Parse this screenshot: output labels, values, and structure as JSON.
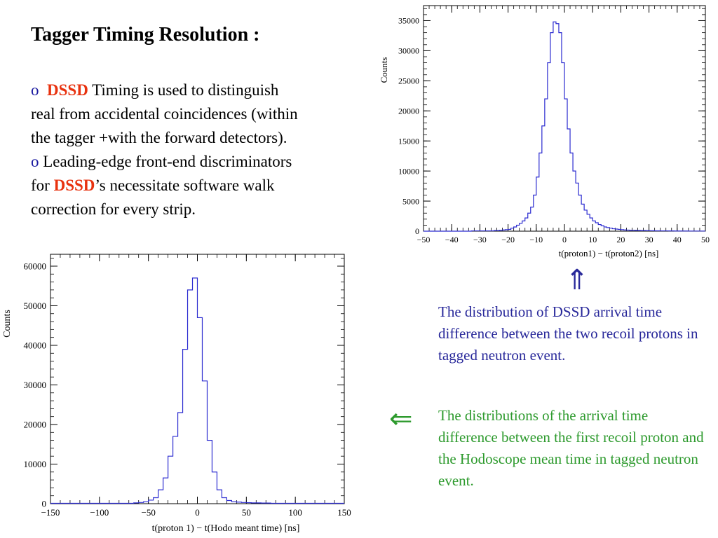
{
  "slide": {
    "title": "Tagger Timing Resolution :",
    "bullet1": {
      "marker": "o",
      "highlight": "DSSD",
      "text_line1": " Timing  is used to distinguish",
      "text_line2": "real from accidental coincidences (within",
      "text_line3": "the tagger  +with the forward detectors)."
    },
    "bullet2": {
      "marker": "o",
      "text_line1": " Leading-edge front-end discriminators",
      "for_word": "for ",
      "highlight": "DSSD",
      "text_after": "’s necessitate software walk",
      "text_line3": "correction for every strip."
    },
    "arrow_up": "⇑",
    "arrow_left": "⇐",
    "caption_dssd": "The distribution of DSSD arrival time difference between the two recoil protons in tagged neutron event.",
    "caption_hodo": "The distributions of the arrival time difference between the first recoil  proton and the Hodoscope mean time in tagged neutron event.",
    "colors": {
      "bullet_marker": "#1a1aa0",
      "highlight": "#e8320f",
      "histogram_line": "#2b2bd0",
      "caption_blue": "#28289a",
      "caption_green": "#2d9a2d"
    }
  },
  "chart_data": [
    {
      "type": "line",
      "style": "step-histogram",
      "xlabel": "t(proton1) − t(proton2) [ns]",
      "ylabel": "Counts",
      "xlim": [
        -50,
        50
      ],
      "ylim": [
        0,
        37500
      ],
      "xticks": [
        -50,
        -40,
        -30,
        -20,
        -10,
        0,
        10,
        20,
        30,
        40,
        50
      ],
      "yticks": [
        0,
        5000,
        10000,
        15000,
        20000,
        25000,
        30000,
        35000
      ],
      "bin_width": 1,
      "x": [
        -50,
        -49,
        -48,
        -47,
        -46,
        -45,
        -44,
        -43,
        -42,
        -41,
        -40,
        -39,
        -38,
        -37,
        -36,
        -35,
        -34,
        -33,
        -32,
        -31,
        -30,
        -29,
        -28,
        -27,
        -26,
        -25,
        -24,
        -23,
        -22,
        -21,
        -20,
        -19,
        -18,
        -17,
        -16,
        -15,
        -14,
        -13,
        -12,
        -11,
        -10,
        -9,
        -8,
        -7,
        -6,
        -5,
        -4,
        -3,
        -2,
        -1,
        0,
        1,
        2,
        3,
        4,
        5,
        6,
        7,
        8,
        9,
        10,
        11,
        12,
        13,
        14,
        15,
        16,
        17,
        18,
        19,
        20,
        21,
        22,
        23,
        24,
        25,
        26,
        27,
        28,
        29,
        30,
        31,
        32,
        33,
        34,
        35,
        36,
        37,
        38,
        39,
        40,
        41,
        42,
        43,
        44,
        45,
        46,
        47,
        48,
        49
      ],
      "y": [
        0,
        0,
        0,
        0,
        0,
        0,
        0,
        0,
        0,
        0,
        0,
        0,
        0,
        0,
        0,
        0,
        0,
        50,
        50,
        50,
        50,
        50,
        50,
        50,
        50,
        100,
        100,
        150,
        200,
        250,
        300,
        500,
        700,
        1000,
        1300,
        1700,
        2200,
        3000,
        4000,
        6000,
        9000,
        13000,
        17500,
        22000,
        28000,
        33000,
        34800,
        34500,
        33000,
        28000,
        22000,
        17000,
        13000,
        10000,
        8000,
        6000,
        4500,
        3500,
        2800,
        2200,
        1700,
        1400,
        1100,
        900,
        700,
        600,
        500,
        400,
        350,
        300,
        250,
        200,
        180,
        160,
        150,
        130,
        120,
        100,
        100,
        90,
        80,
        70,
        60,
        60,
        50,
        50,
        50,
        40,
        40,
        30,
        30,
        30,
        30,
        30,
        20,
        20,
        20,
        20,
        20,
        20
      ]
    },
    {
      "type": "line",
      "style": "step-histogram",
      "xlabel": "t(proton 1) − t(Hodo meant time) [ns]",
      "ylabel": "Counts",
      "xlim": [
        -150,
        150
      ],
      "ylim": [
        0,
        63000
      ],
      "xticks": [
        -150,
        -100,
        -50,
        0,
        50,
        100,
        150
      ],
      "yticks": [
        0,
        10000,
        20000,
        30000,
        40000,
        50000,
        60000
      ],
      "bin_width": 5,
      "x": [
        -150,
        -145,
        -140,
        -135,
        -130,
        -125,
        -120,
        -115,
        -110,
        -105,
        -100,
        -95,
        -90,
        -85,
        -80,
        -75,
        -70,
        -65,
        -60,
        -55,
        -50,
        -45,
        -40,
        -35,
        -30,
        -25,
        -20,
        -15,
        -10,
        -5,
        0,
        5,
        10,
        15,
        20,
        25,
        30,
        35,
        40,
        45,
        50,
        55,
        60,
        65,
        70,
        75,
        80,
        85,
        90,
        95,
        100,
        105,
        110,
        115,
        120,
        125,
        130,
        135,
        140,
        145
      ],
      "y": [
        100,
        100,
        100,
        100,
        100,
        100,
        100,
        100,
        100,
        100,
        100,
        100,
        100,
        100,
        100,
        100,
        100,
        200,
        300,
        500,
        900,
        1500,
        3500,
        6500,
        12000,
        17000,
        23000,
        39000,
        54000,
        57000,
        47000,
        31000,
        16000,
        8000,
        3500,
        1500,
        800,
        500,
        400,
        300,
        250,
        200,
        200,
        150,
        150,
        100,
        100,
        100,
        100,
        100,
        100,
        100,
        100,
        100,
        100,
        100,
        100,
        100,
        100,
        100
      ]
    }
  ]
}
